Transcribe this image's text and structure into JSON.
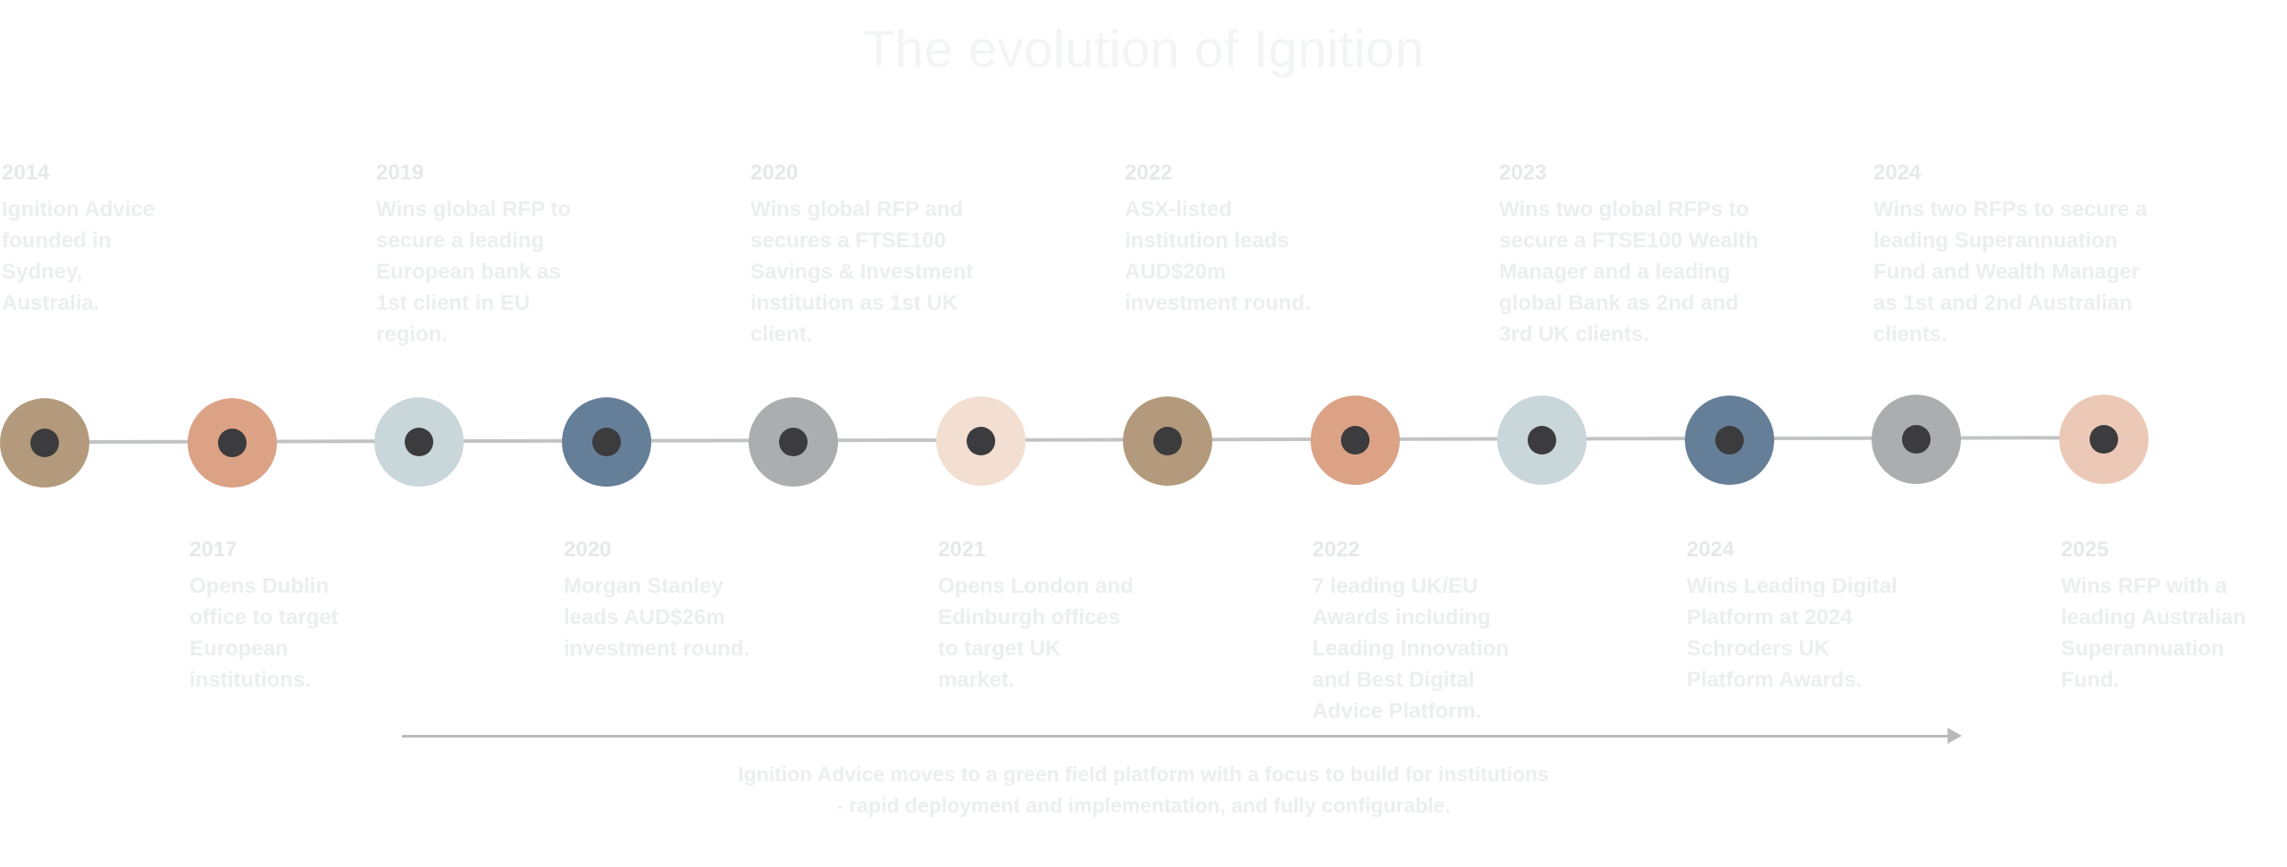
{
  "title": "The evolution of Ignition",
  "milestones": [
    {
      "year": "2014",
      "desc": "Ignition Advice founded in Sydney, Australia.",
      "color": "#b39a7c",
      "pos": "top"
    },
    {
      "year": "2017",
      "desc": "Opens Dublin office to target European institutions.",
      "color": "#dba286",
      "pos": "bottom"
    },
    {
      "year": "2019",
      "desc": "Wins global RFP to secure a leading European bank as 1st client in EU region.",
      "color": "#c9d6da",
      "pos": "top"
    },
    {
      "year": "2020",
      "desc": "Morgan Stanley leads AUD$26m investment round.",
      "color": "#667f99",
      "pos": "bottom"
    },
    {
      "year": "2020",
      "desc": "Wins global RFP and secures a FTSE100 Savings & Investment institution as 1st UK client.",
      "color": "#acadae",
      "pos": "top"
    },
    {
      "year": "2021",
      "desc": "Opens London and Edinburgh offices to target UK market.",
      "color": "#f2dfd2",
      "pos": "bottom"
    },
    {
      "year": "2022",
      "desc": "ASX-listed institution leads AUD$20m investment round.",
      "color": "#b39a7c",
      "pos": "top"
    },
    {
      "year": "2022",
      "desc": "7 leading UK/EU Awards including Leading Innovation and Best Digital Advice Platform.",
      "color": "#dba286",
      "pos": "bottom"
    },
    {
      "year": "2023",
      "desc": "Wins two global RFPs to secure a FTSE100 Wealth Manager and a leading global Bank as 2nd and 3rd UK clients.",
      "color": "#c9d6da",
      "pos": "top"
    },
    {
      "year": "2024",
      "desc": "Wins Leading Digital Platform at 2024 Schroders UK Platform Awards.",
      "color": "#667f99",
      "pos": "bottom"
    },
    {
      "year": "2024",
      "desc": "Wins two RFPs to secure a leading Superannuation Fund and Wealth Manager as 1st and 2nd Australian clients.",
      "color": "#acadae",
      "pos": "top"
    },
    {
      "year": "2025",
      "desc": "Wins RFP with a leading Australian Superannuation Fund.",
      "color": "#ebc9b6",
      "pos": "bottom"
    }
  ],
  "footnote": {
    "line1": "Ignition Advice moves to a green field platform with a focus to build for institutions",
    "line2": "- rapid deployment and implementation, and fully configurable."
  }
}
